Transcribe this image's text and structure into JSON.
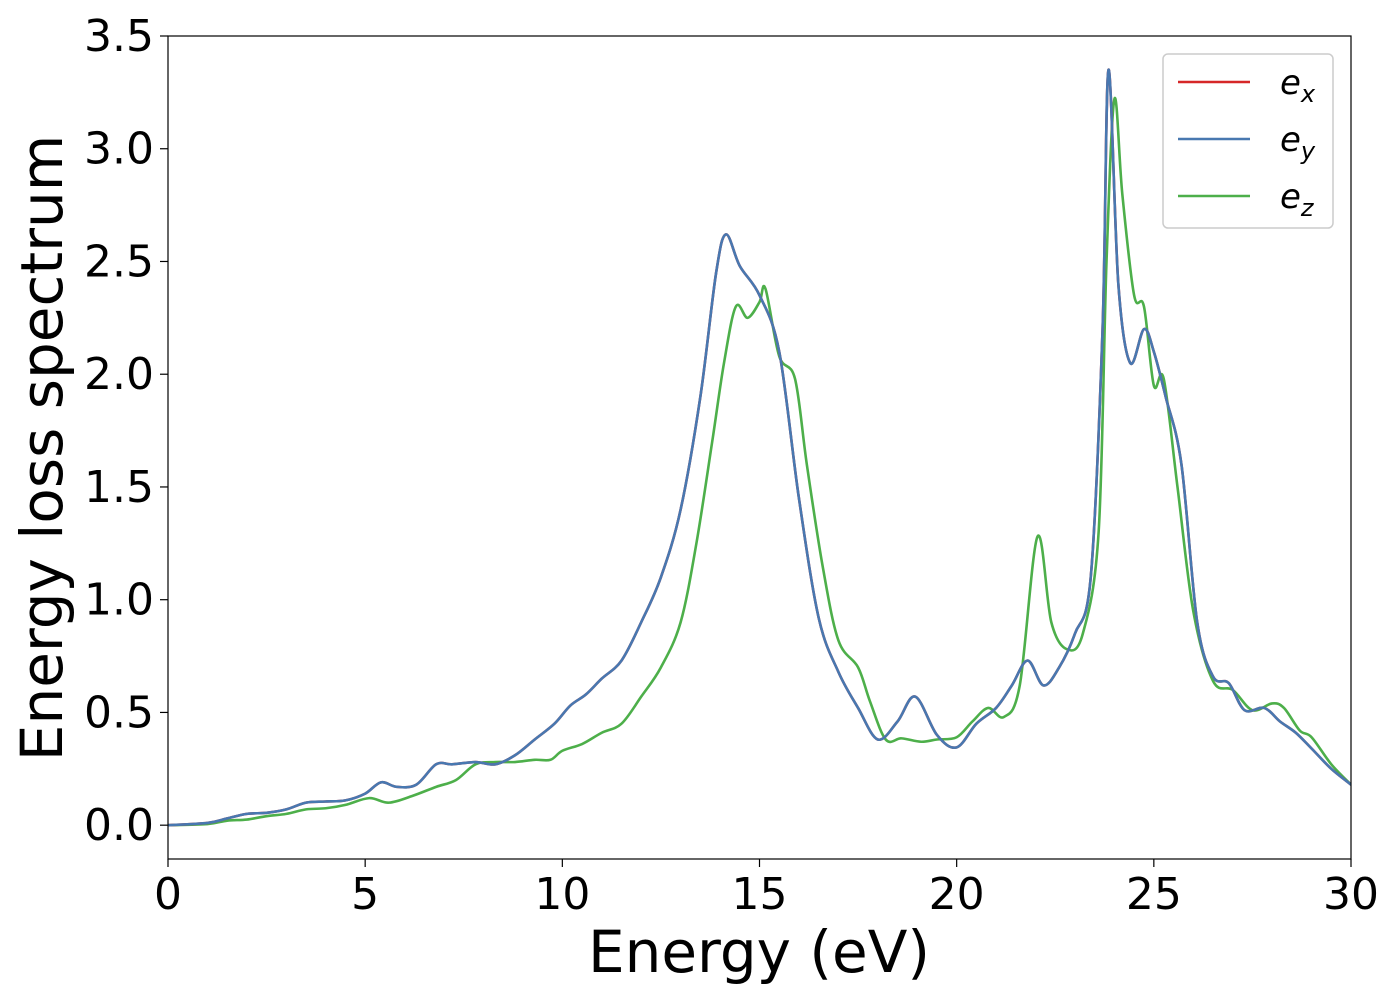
{
  "chart_data": {
    "type": "line",
    "xlabel": "Energy (eV)",
    "ylabel": "Energy loss spectrum",
    "xlim": [
      0,
      30
    ],
    "ylim": [
      -0.15,
      3.5
    ],
    "xticks": [
      0,
      5,
      10,
      15,
      20,
      25,
      30
    ],
    "xtick_labels": [
      "0",
      "5",
      "10",
      "15",
      "20",
      "25",
      "30"
    ],
    "yticks": [
      0.0,
      0.5,
      1.0,
      1.5,
      2.0,
      2.5,
      3.0,
      3.5
    ],
    "ytick_labels": [
      "0.0",
      "0.5",
      "1.0",
      "1.5",
      "2.0",
      "2.5",
      "3.0",
      "3.5"
    ],
    "grid": false,
    "legend_position": "top-right",
    "series": [
      {
        "name": "e",
        "subscript": "x",
        "color": "#d62728",
        "x": [
          0,
          1,
          1.5,
          2,
          2.5,
          3,
          3.5,
          4,
          4.5,
          5,
          5.4,
          5.8,
          6.3,
          6.8,
          7.2,
          7.8,
          8.3,
          8.8,
          9.3,
          9.8,
          10.2,
          10.6,
          11.0,
          11.5,
          12.0,
          12.5,
          13.0,
          13.5,
          13.9,
          14.15,
          14.5,
          15.0,
          15.5,
          16.0,
          16.5,
          17.0,
          17.5,
          18.0,
          18.5,
          18.95,
          19.5,
          20.0,
          20.5,
          21.0,
          21.4,
          21.8,
          22.2,
          22.6,
          23.0,
          23.4,
          23.7,
          23.85,
          24.1,
          24.4,
          24.75,
          25.0,
          25.3,
          25.7,
          26.1,
          26.5,
          26.9,
          27.3,
          27.8,
          28.2,
          28.6,
          29.0,
          29.5,
          30.0
        ],
        "y": [
          0.0,
          0.01,
          0.03,
          0.05,
          0.055,
          0.07,
          0.1,
          0.105,
          0.11,
          0.14,
          0.19,
          0.17,
          0.18,
          0.27,
          0.27,
          0.28,
          0.27,
          0.31,
          0.38,
          0.45,
          0.53,
          0.58,
          0.65,
          0.73,
          0.9,
          1.1,
          1.4,
          1.9,
          2.45,
          2.62,
          2.48,
          2.35,
          2.1,
          1.45,
          0.92,
          0.68,
          0.52,
          0.38,
          0.46,
          0.57,
          0.4,
          0.345,
          0.45,
          0.52,
          0.62,
          0.73,
          0.62,
          0.7,
          0.85,
          1.1,
          2.2,
          3.35,
          2.4,
          2.05,
          2.2,
          2.1,
          1.9,
          1.6,
          0.9,
          0.66,
          0.63,
          0.51,
          0.52,
          0.46,
          0.41,
          0.34,
          0.25,
          0.18
        ]
      },
      {
        "name": "e",
        "subscript": "y",
        "color": "#4878b0",
        "x": [
          0,
          1,
          1.5,
          2,
          2.5,
          3,
          3.5,
          4,
          4.5,
          5,
          5.4,
          5.8,
          6.3,
          6.8,
          7.2,
          7.8,
          8.3,
          8.8,
          9.3,
          9.8,
          10.2,
          10.6,
          11.0,
          11.5,
          12.0,
          12.5,
          13.0,
          13.5,
          13.9,
          14.15,
          14.5,
          15.0,
          15.5,
          16.0,
          16.5,
          17.0,
          17.5,
          18.0,
          18.5,
          18.95,
          19.5,
          20.0,
          20.5,
          21.0,
          21.4,
          21.8,
          22.2,
          22.6,
          23.0,
          23.4,
          23.7,
          23.85,
          24.1,
          24.4,
          24.75,
          25.0,
          25.3,
          25.7,
          26.1,
          26.5,
          26.9,
          27.3,
          27.8,
          28.2,
          28.6,
          29.0,
          29.5,
          30.0
        ],
        "y": [
          0.0,
          0.01,
          0.03,
          0.05,
          0.055,
          0.07,
          0.1,
          0.105,
          0.11,
          0.14,
          0.19,
          0.17,
          0.18,
          0.27,
          0.27,
          0.28,
          0.27,
          0.31,
          0.38,
          0.45,
          0.53,
          0.58,
          0.65,
          0.73,
          0.9,
          1.1,
          1.4,
          1.9,
          2.45,
          2.62,
          2.48,
          2.35,
          2.1,
          1.45,
          0.92,
          0.68,
          0.52,
          0.38,
          0.46,
          0.57,
          0.4,
          0.345,
          0.45,
          0.52,
          0.62,
          0.73,
          0.62,
          0.7,
          0.85,
          1.1,
          2.2,
          3.35,
          2.4,
          2.05,
          2.2,
          2.1,
          1.9,
          1.6,
          0.9,
          0.66,
          0.63,
          0.51,
          0.52,
          0.46,
          0.41,
          0.34,
          0.25,
          0.18
        ]
      },
      {
        "name": "e",
        "subscript": "z",
        "color": "#4daf4a",
        "x": [
          0,
          1,
          1.5,
          2,
          2.5,
          3,
          3.5,
          4,
          4.5,
          5.1,
          5.6,
          6.2,
          6.8,
          7.3,
          7.8,
          8.3,
          8.8,
          9.3,
          9.7,
          10.0,
          10.5,
          11.0,
          11.5,
          12.0,
          12.5,
          13.0,
          13.4,
          13.8,
          14.1,
          14.4,
          14.7,
          15.0,
          15.15,
          15.5,
          15.9,
          16.2,
          16.6,
          17.0,
          17.5,
          17.8,
          18.2,
          18.6,
          19.1,
          19.5,
          20.0,
          20.4,
          20.8,
          21.2,
          21.6,
          22.05,
          22.4,
          22.8,
          23.2,
          23.6,
          23.8,
          24.0,
          24.2,
          24.5,
          24.75,
          25.0,
          25.25,
          25.6,
          26.0,
          26.5,
          27.0,
          27.5,
          28.0,
          28.3,
          28.7,
          29.0,
          29.5,
          30.0
        ],
        "y": [
          0.0,
          0.005,
          0.02,
          0.025,
          0.04,
          0.05,
          0.07,
          0.075,
          0.09,
          0.12,
          0.1,
          0.13,
          0.17,
          0.2,
          0.27,
          0.28,
          0.28,
          0.29,
          0.29,
          0.33,
          0.36,
          0.41,
          0.45,
          0.57,
          0.7,
          0.9,
          1.25,
          1.7,
          2.05,
          2.3,
          2.25,
          2.32,
          2.38,
          2.08,
          1.98,
          1.6,
          1.15,
          0.82,
          0.7,
          0.55,
          0.38,
          0.385,
          0.37,
          0.38,
          0.39,
          0.46,
          0.52,
          0.48,
          0.62,
          1.28,
          0.9,
          0.78,
          0.85,
          1.3,
          2.5,
          3.22,
          2.8,
          2.35,
          2.3,
          1.95,
          1.98,
          1.5,
          0.95,
          0.64,
          0.6,
          0.51,
          0.54,
          0.52,
          0.42,
          0.39,
          0.27,
          0.18
        ]
      }
    ]
  }
}
